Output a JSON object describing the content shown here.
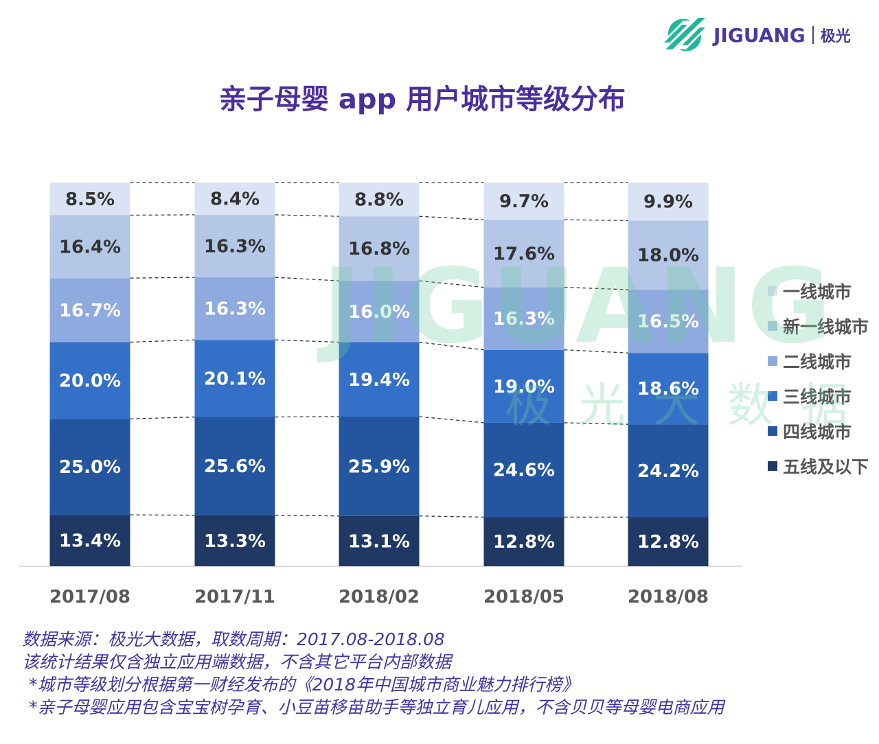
{
  "logo": {
    "brand": "JIGUANG",
    "cn": "极光",
    "brand_color": "#4a3aa0",
    "mark_color": "#1fb89a"
  },
  "watermark": {
    "main": "JIGUANG",
    "sub": "极光大数据"
  },
  "chart_data": {
    "type": "bar",
    "stacked": true,
    "title": "亲子母婴 app 用户城市等级分布",
    "categories": [
      "2017/08",
      "2017/11",
      "2018/02",
      "2018/05",
      "2018/08"
    ],
    "ylim": [
      0,
      100
    ],
    "unit": "%",
    "grid": false,
    "legend_position": "right",
    "series": [
      {
        "name": "五线及以下",
        "color": "#1f3864",
        "label_color": "#ffffff",
        "values": [
          13.4,
          13.3,
          13.1,
          12.8,
          12.8
        ]
      },
      {
        "name": "四线城市",
        "color": "#2456a0",
        "label_color": "#ffffff",
        "values": [
          25.0,
          25.6,
          25.9,
          24.6,
          24.2
        ]
      },
      {
        "name": "三线城市",
        "color": "#3470c8",
        "label_color": "#ffffff",
        "values": [
          20.0,
          20.1,
          19.4,
          19.0,
          18.6
        ]
      },
      {
        "name": "二线城市",
        "color": "#8eaadf",
        "label_color": "#ffffff",
        "values": [
          16.7,
          16.3,
          16.0,
          16.3,
          16.5
        ]
      },
      {
        "name": "新一线城市",
        "color": "#b4c7e7",
        "label_color": "#333333",
        "values": [
          16.4,
          16.3,
          16.8,
          17.6,
          18.0
        ]
      },
      {
        "name": "一线城市",
        "color": "#dae3f3",
        "label_color": "#333333",
        "values": [
          8.5,
          8.4,
          8.8,
          9.7,
          9.9
        ]
      }
    ]
  },
  "legend_order": [
    5,
    4,
    3,
    2,
    1,
    0
  ],
  "notes": [
    "数据来源：极光大数据，取数周期：2017.08-2018.08",
    "该统计结果仅含独立应用端数据，不含其它平台内部数据",
    "*城市等级划分根据第一财经发布的《2018年中国城市商业魅力排行榜》",
    "*亲子母婴应用包含宝宝树孕育、小豆苗移苗助手等独立育儿应用，不含贝贝等母婴电商应用"
  ]
}
